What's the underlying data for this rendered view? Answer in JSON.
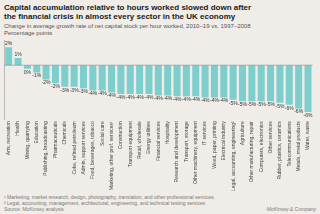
{
  "chart_data": {
    "type": "bar",
    "title": [
      "Capital accumulation relative to hours worked slowed down after",
      "the financial crisis in almost every sector in the UK economy"
    ],
    "subtitle": [
      "Change in average growth rate of net capital stock per hour worked, 2010–19 vs. 1997–2008",
      "Percentage points"
    ],
    "categories": [
      "Arts, recreation",
      "Health",
      "Mining, quarrying",
      "Education",
      "Publishing, broadcasting",
      "Pharmaceuticals",
      "Chemicals",
      "Coke, refined petroleum",
      "Admin, support services",
      "Food, beverages, tobacco",
      "Social care",
      "Marketing, other prof. services¹",
      "Construction",
      "Transport equipment",
      "Retail, wholesale",
      "Energy utilities",
      "Financial services",
      "Hospitality",
      "Research and development",
      "Transport, storage",
      "Other machinery, equipment",
      "IT services",
      "Wood, paper, printing",
      "Electrical industry",
      "Legal, accounting, engineering²",
      "Agriculture",
      "Other manufacturing, repair",
      "Computers, electronics",
      "Other services",
      "Rubber, plastics, ceramics",
      "Telecommunications",
      "Metals, metal products",
      "Water, waste"
    ],
    "values": [
      2.5,
      1.0,
      -0.5,
      -1.0,
      -2.0,
      -2.5,
      -3.0,
      -3.0,
      -3.2,
      -3.5,
      -3.5,
      -3.8,
      -4.0,
      -4.0,
      -4.0,
      -4.0,
      -4.2,
      -4.2,
      -4.3,
      -4.3,
      -4.3,
      -4.5,
      -4.5,
      -4.5,
      -4.8,
      -5.0,
      -5.0,
      -5.0,
      -5.0,
      -5.2,
      -5.5,
      -6.0,
      -6.5
    ],
    "value_labels": [
      "2%",
      "1%",
      "0%",
      "-1%",
      "-2%",
      "-2%",
      "-3%",
      "-3%",
      "-3%",
      "-4%",
      "-4%",
      "-4%",
      "-4%",
      "-4%",
      "-4%",
      "-4%",
      "-4%",
      "-4%",
      "-4%",
      "-4%",
      "-4%",
      "-4%",
      "-4%",
      "-4%",
      "-5%",
      "-5%",
      "-5%",
      "-5%",
      "-5%",
      "-5%",
      "-6%",
      "-6%",
      "-6%"
    ],
    "color": "#7ecece",
    "ylim": [
      -7.5,
      3.5
    ],
    "data_labels": true,
    "tick_labels": "x",
    "grid": false,
    "footnotes": [
      "¹ Marketing, market research, design, photography, translation, and other professional services.",
      "² Legal, accounting, management, architectural, engineering, and technical testing services"
    ],
    "source": "Source: McKinsey analysis",
    "logo": "McKinsey & Company"
  }
}
